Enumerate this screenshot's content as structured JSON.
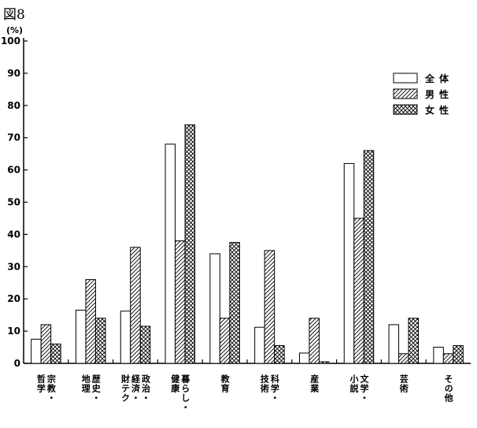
{
  "figure_label": "図8",
  "chart_data": {
    "type": "bar",
    "unit_label": "(%)",
    "ylim": [
      0,
      100
    ],
    "yticks": [
      "0",
      "10",
      "20",
      "30",
      "40",
      "50",
      "60",
      "70",
      "80",
      "90",
      "100"
    ],
    "categories": [
      [
        "宗教・",
        "哲学"
      ],
      [
        "歴史・",
        "地理"
      ],
      [
        "政治・",
        "経済・",
        "財テク"
      ],
      [
        "暮らし・",
        "健康"
      ],
      [
        "教育"
      ],
      [
        "科学・",
        "技術"
      ],
      [
        "産業"
      ],
      [
        "文学・",
        "小説"
      ],
      [
        "芸術"
      ],
      [
        "その他"
      ]
    ],
    "series": [
      {
        "name": "全体",
        "pattern": "blank",
        "values": [
          7.5,
          16.5,
          16.2,
          68,
          34,
          11.2,
          3.2,
          62,
          12,
          5
        ]
      },
      {
        "name": "男性",
        "pattern": "hatch",
        "values": [
          12,
          26,
          36,
          38,
          14,
          35,
          14,
          45,
          3,
          3
        ]
      },
      {
        "name": "女性",
        "pattern": "crosshatch",
        "values": [
          6,
          14,
          11.5,
          74,
          37.5,
          5.5,
          0.5,
          66,
          14,
          5.5
        ]
      }
    ],
    "legend_position": "top-right",
    "grid": false,
    "colors": {
      "stroke": "#000000",
      "fill": "#ffffff"
    }
  }
}
